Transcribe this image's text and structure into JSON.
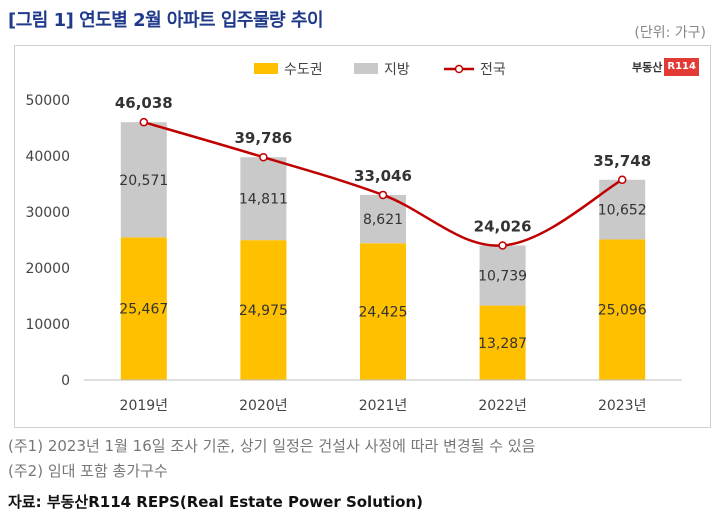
{
  "title": "[그림 1] 연도별 2월 아파트 입주물량 추이",
  "unit_label": "(단위: 가구)",
  "logo": {
    "text": "부동산",
    "box": "R114"
  },
  "notes": [
    "(주1) 2023년 1월 16일 조사 기준, 상기 일정은 건설사 사정에 따라 변경될 수 있음",
    "(주2) 임대 포함 총가구수"
  ],
  "source": "자료: 부동산R114 REPS(Real Estate Power Solution)",
  "colors": {
    "capital": "#FFC000",
    "local": "#C9C9C9",
    "total": "#C00000",
    "title": "#1F3A8A"
  },
  "chart_data": {
    "type": "bar",
    "stacked": true,
    "categories": [
      "2019년",
      "2020년",
      "2021년",
      "2022년",
      "2023년"
    ],
    "series": [
      {
        "name": "수도권",
        "values": [
          25467,
          24975,
          24425,
          13287,
          25096
        ],
        "labels": [
          "25,467",
          "24,975",
          "24,425",
          "13,287",
          "25,096"
        ]
      },
      {
        "name": "지방",
        "values": [
          20571,
          14811,
          8621,
          10739,
          10652
        ],
        "labels": [
          "20,571",
          "14,811",
          "8,621",
          "10,739",
          "10,652"
        ]
      },
      {
        "name": "전국",
        "type": "line",
        "values": [
          46038,
          39786,
          33046,
          24026,
          35748
        ],
        "labels": [
          "46,038",
          "39,786",
          "33,046",
          "24,026",
          "35,748"
        ]
      }
    ],
    "yticks": [
      "0",
      "10000",
      "20000",
      "30000",
      "40000",
      "50000"
    ],
    "ylim": [
      0,
      50000
    ],
    "legend_position": "top-center",
    "grid": false
  }
}
